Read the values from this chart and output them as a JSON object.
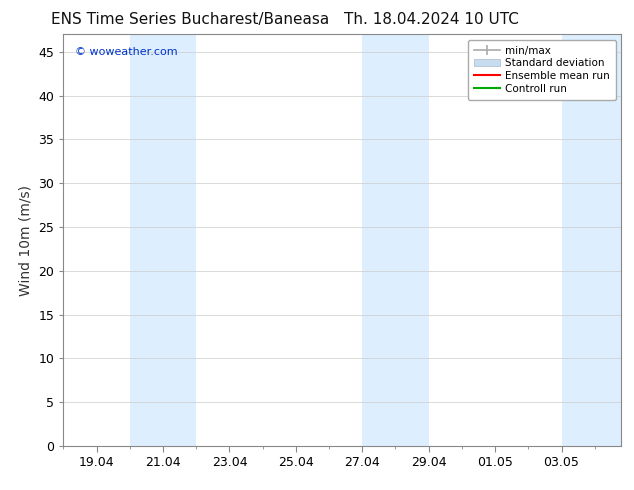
{
  "title_left": "ENS Time Series Bucharest/Baneasa",
  "title_right": "Th. 18.04.2024 10 UTC",
  "ylabel": "Wind 10m (m/s)",
  "watermark": "© woweather.com",
  "watermark_color": "#0033cc",
  "background_color": "#ffffff",
  "plot_bg_color": "#ffffff",
  "ylim": [
    0,
    47
  ],
  "yticks": [
    0,
    5,
    10,
    15,
    20,
    25,
    30,
    35,
    40,
    45
  ],
  "shade_color": "#ddeeff",
  "legend_items": [
    {
      "label": "min/max",
      "color": "#aaaaaa",
      "lw": 1.2
    },
    {
      "label": "Standard deviation",
      "color": "#c8dcf0",
      "lw": 6
    },
    {
      "label": "Ensemble mean run",
      "color": "#ff0000",
      "lw": 1.5
    },
    {
      "label": "Controll run",
      "color": "#00aa00",
      "lw": 1.5
    }
  ],
  "title_fontsize": 11,
  "tick_fontsize": 9,
  "ylabel_fontsize": 10,
  "watermark_fontsize": 8
}
